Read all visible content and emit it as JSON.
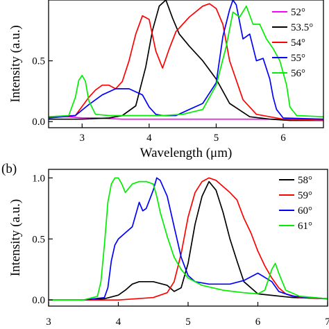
{
  "chart_data": [
    {
      "panel_label": "",
      "type": "line",
      "xlabel": "Wavelength (μm)",
      "ylabel": "Intensity (a.u.)",
      "xlim": [
        2.5,
        6.6
      ],
      "ylim": [
        -0.05,
        1.0
      ],
      "xticks": [
        3,
        4,
        5,
        6
      ],
      "yticks": [
        0.0,
        0.5
      ],
      "ytick_labels": [
        "0.0",
        "0.5"
      ],
      "legend_position": "top-right",
      "series": [
        {
          "name": "52°",
          "color": "#ff00ff",
          "x": [
            2.5,
            2.8,
            3.0,
            3.2,
            3.6,
            5.0,
            6.0,
            6.6
          ],
          "y": [
            0.04,
            0.04,
            0.03,
            0.03,
            0.02,
            0.02,
            0.02,
            0.02
          ]
        },
        {
          "name": "53.5°",
          "color": "#000000",
          "x": [
            2.5,
            3.0,
            3.4,
            3.6,
            3.8,
            3.95,
            4.05,
            4.15,
            4.25,
            4.35,
            4.45,
            4.6,
            4.8,
            5.0,
            5.2,
            5.5,
            5.8,
            6.1,
            6.6
          ],
          "y": [
            0.02,
            0.02,
            0.03,
            0.05,
            0.13,
            0.45,
            0.75,
            0.95,
            1.0,
            0.85,
            0.72,
            0.62,
            0.5,
            0.35,
            0.15,
            0.04,
            0.02,
            0.01,
            0.01
          ]
        },
        {
          "name": "54°",
          "color": "#ff0000",
          "x": [
            2.5,
            2.9,
            3.1,
            3.2,
            3.3,
            3.4,
            3.5,
            3.6,
            3.7,
            3.8,
            3.9,
            4.0,
            4.1,
            4.2,
            4.3,
            4.4,
            4.6,
            4.8,
            4.9,
            5.0,
            5.1,
            5.2,
            5.4,
            5.6,
            6.0,
            6.6
          ],
          "y": [
            0.04,
            0.05,
            0.2,
            0.26,
            0.3,
            0.3,
            0.27,
            0.33,
            0.5,
            0.72,
            0.87,
            0.84,
            0.58,
            0.44,
            0.6,
            0.74,
            0.86,
            0.95,
            0.97,
            0.93,
            0.8,
            0.5,
            0.18,
            0.06,
            0.02,
            0.01
          ]
        },
        {
          "name": "55°",
          "color": "#0000ff",
          "x": [
            2.5,
            2.9,
            3.1,
            3.3,
            3.5,
            3.7,
            3.9,
            4.0,
            4.1,
            4.2,
            4.4,
            4.6,
            4.8,
            5.0,
            5.1,
            5.2,
            5.25,
            5.3,
            5.4,
            5.5,
            5.6,
            5.7,
            5.8,
            5.85,
            5.9,
            6.0,
            6.6
          ],
          "y": [
            0.03,
            0.05,
            0.14,
            0.22,
            0.27,
            0.27,
            0.22,
            0.12,
            0.06,
            0.05,
            0.05,
            0.1,
            0.15,
            0.32,
            0.7,
            0.92,
            1.0,
            0.96,
            0.68,
            0.72,
            0.5,
            0.52,
            0.35,
            0.2,
            0.1,
            0.03,
            0.02
          ]
        },
        {
          "name": "56°",
          "color": "#00ee00",
          "x": [
            2.5,
            2.8,
            2.9,
            2.95,
            3.0,
            3.05,
            3.1,
            3.2,
            3.4,
            3.6,
            3.8,
            4.0,
            4.2,
            4.5,
            4.8,
            5.0,
            5.15,
            5.25,
            5.35,
            5.45,
            5.55,
            5.65,
            5.75,
            5.85,
            5.95,
            6.05,
            6.1,
            6.2,
            6.6
          ],
          "y": [
            0.04,
            0.05,
            0.2,
            0.34,
            0.38,
            0.33,
            0.17,
            0.06,
            0.05,
            0.05,
            0.05,
            0.05,
            0.05,
            0.06,
            0.1,
            0.3,
            0.62,
            0.9,
            0.86,
            0.95,
            0.8,
            0.8,
            0.68,
            0.6,
            0.5,
            0.3,
            0.12,
            0.05,
            0.04
          ]
        }
      ]
    },
    {
      "panel_label": "(b)",
      "type": "line",
      "xlabel": "",
      "ylabel": "Intensity (a.u.)",
      "xlim": [
        3,
        7
      ],
      "ylim": [
        -0.05,
        1.07
      ],
      "xticks": [
        3,
        4,
        5,
        6,
        7
      ],
      "yticks": [
        0.0,
        0.5,
        1.0
      ],
      "ytick_labels": [
        "0.0",
        "0.5",
        "1.0"
      ],
      "legend_position": "top-right",
      "series": [
        {
          "name": "58°",
          "color": "#000000",
          "x": [
            3.0,
            3.5,
            3.8,
            4.0,
            4.1,
            4.2,
            4.3,
            4.5,
            4.7,
            4.8,
            4.9,
            5.0,
            5.1,
            5.2,
            5.3,
            5.4,
            5.5,
            5.6,
            5.7,
            5.8,
            6.0,
            6.5,
            7.0
          ],
          "y": [
            0.0,
            0.0,
            0.01,
            0.04,
            0.08,
            0.13,
            0.15,
            0.15,
            0.12,
            0.07,
            0.1,
            0.3,
            0.62,
            0.85,
            0.97,
            0.9,
            0.72,
            0.5,
            0.32,
            0.15,
            0.05,
            0.02,
            0.01
          ]
        },
        {
          "name": "59°",
          "color": "#ff0000",
          "x": [
            3.0,
            4.0,
            4.5,
            4.7,
            4.8,
            4.9,
            5.0,
            5.1,
            5.2,
            5.3,
            5.4,
            5.5,
            5.6,
            5.7,
            5.8,
            5.9,
            6.0,
            6.1,
            6.2,
            6.3,
            6.4,
            6.6,
            7.0
          ],
          "y": [
            0.0,
            0.0,
            0.02,
            0.06,
            0.15,
            0.38,
            0.68,
            0.88,
            0.97,
            1.0,
            0.98,
            0.93,
            0.88,
            0.82,
            0.67,
            0.55,
            0.4,
            0.28,
            0.18,
            0.1,
            0.05,
            0.02,
            0.01
          ]
        },
        {
          "name": "60°",
          "color": "#0000ff",
          "x": [
            3.0,
            3.5,
            3.8,
            3.85,
            3.9,
            3.95,
            4.0,
            4.1,
            4.2,
            4.3,
            4.35,
            4.4,
            4.5,
            4.55,
            4.6,
            4.7,
            4.8,
            4.9,
            5.0,
            5.1,
            5.3,
            5.6,
            5.8,
            6.0,
            6.2,
            6.3,
            6.5,
            7.0
          ],
          "y": [
            0.0,
            0.0,
            0.02,
            0.1,
            0.32,
            0.45,
            0.5,
            0.55,
            0.6,
            0.8,
            0.73,
            0.75,
            0.9,
            1.0,
            0.98,
            0.85,
            0.6,
            0.35,
            0.2,
            0.15,
            0.13,
            0.13,
            0.16,
            0.22,
            0.15,
            0.07,
            0.03,
            0.01
          ]
        },
        {
          "name": "61°",
          "color": "#00ee00",
          "x": [
            3.0,
            3.5,
            3.7,
            3.75,
            3.8,
            3.85,
            3.9,
            3.95,
            4.0,
            4.05,
            4.1,
            4.2,
            4.3,
            4.4,
            4.5,
            4.55,
            4.6,
            4.7,
            4.8,
            4.9,
            5.0,
            5.2,
            5.5,
            5.8,
            6.0,
            6.1,
            6.2,
            6.25,
            6.3,
            6.4,
            6.6,
            7.0
          ],
          "y": [
            0.0,
            0.0,
            0.03,
            0.15,
            0.45,
            0.8,
            0.95,
            1.0,
            1.0,
            0.95,
            0.88,
            0.95,
            0.97,
            0.97,
            0.95,
            0.85,
            0.72,
            0.52,
            0.35,
            0.25,
            0.18,
            0.12,
            0.08,
            0.06,
            0.05,
            0.08,
            0.25,
            0.3,
            0.22,
            0.08,
            0.03,
            0.01
          ]
        }
      ]
    }
  ]
}
